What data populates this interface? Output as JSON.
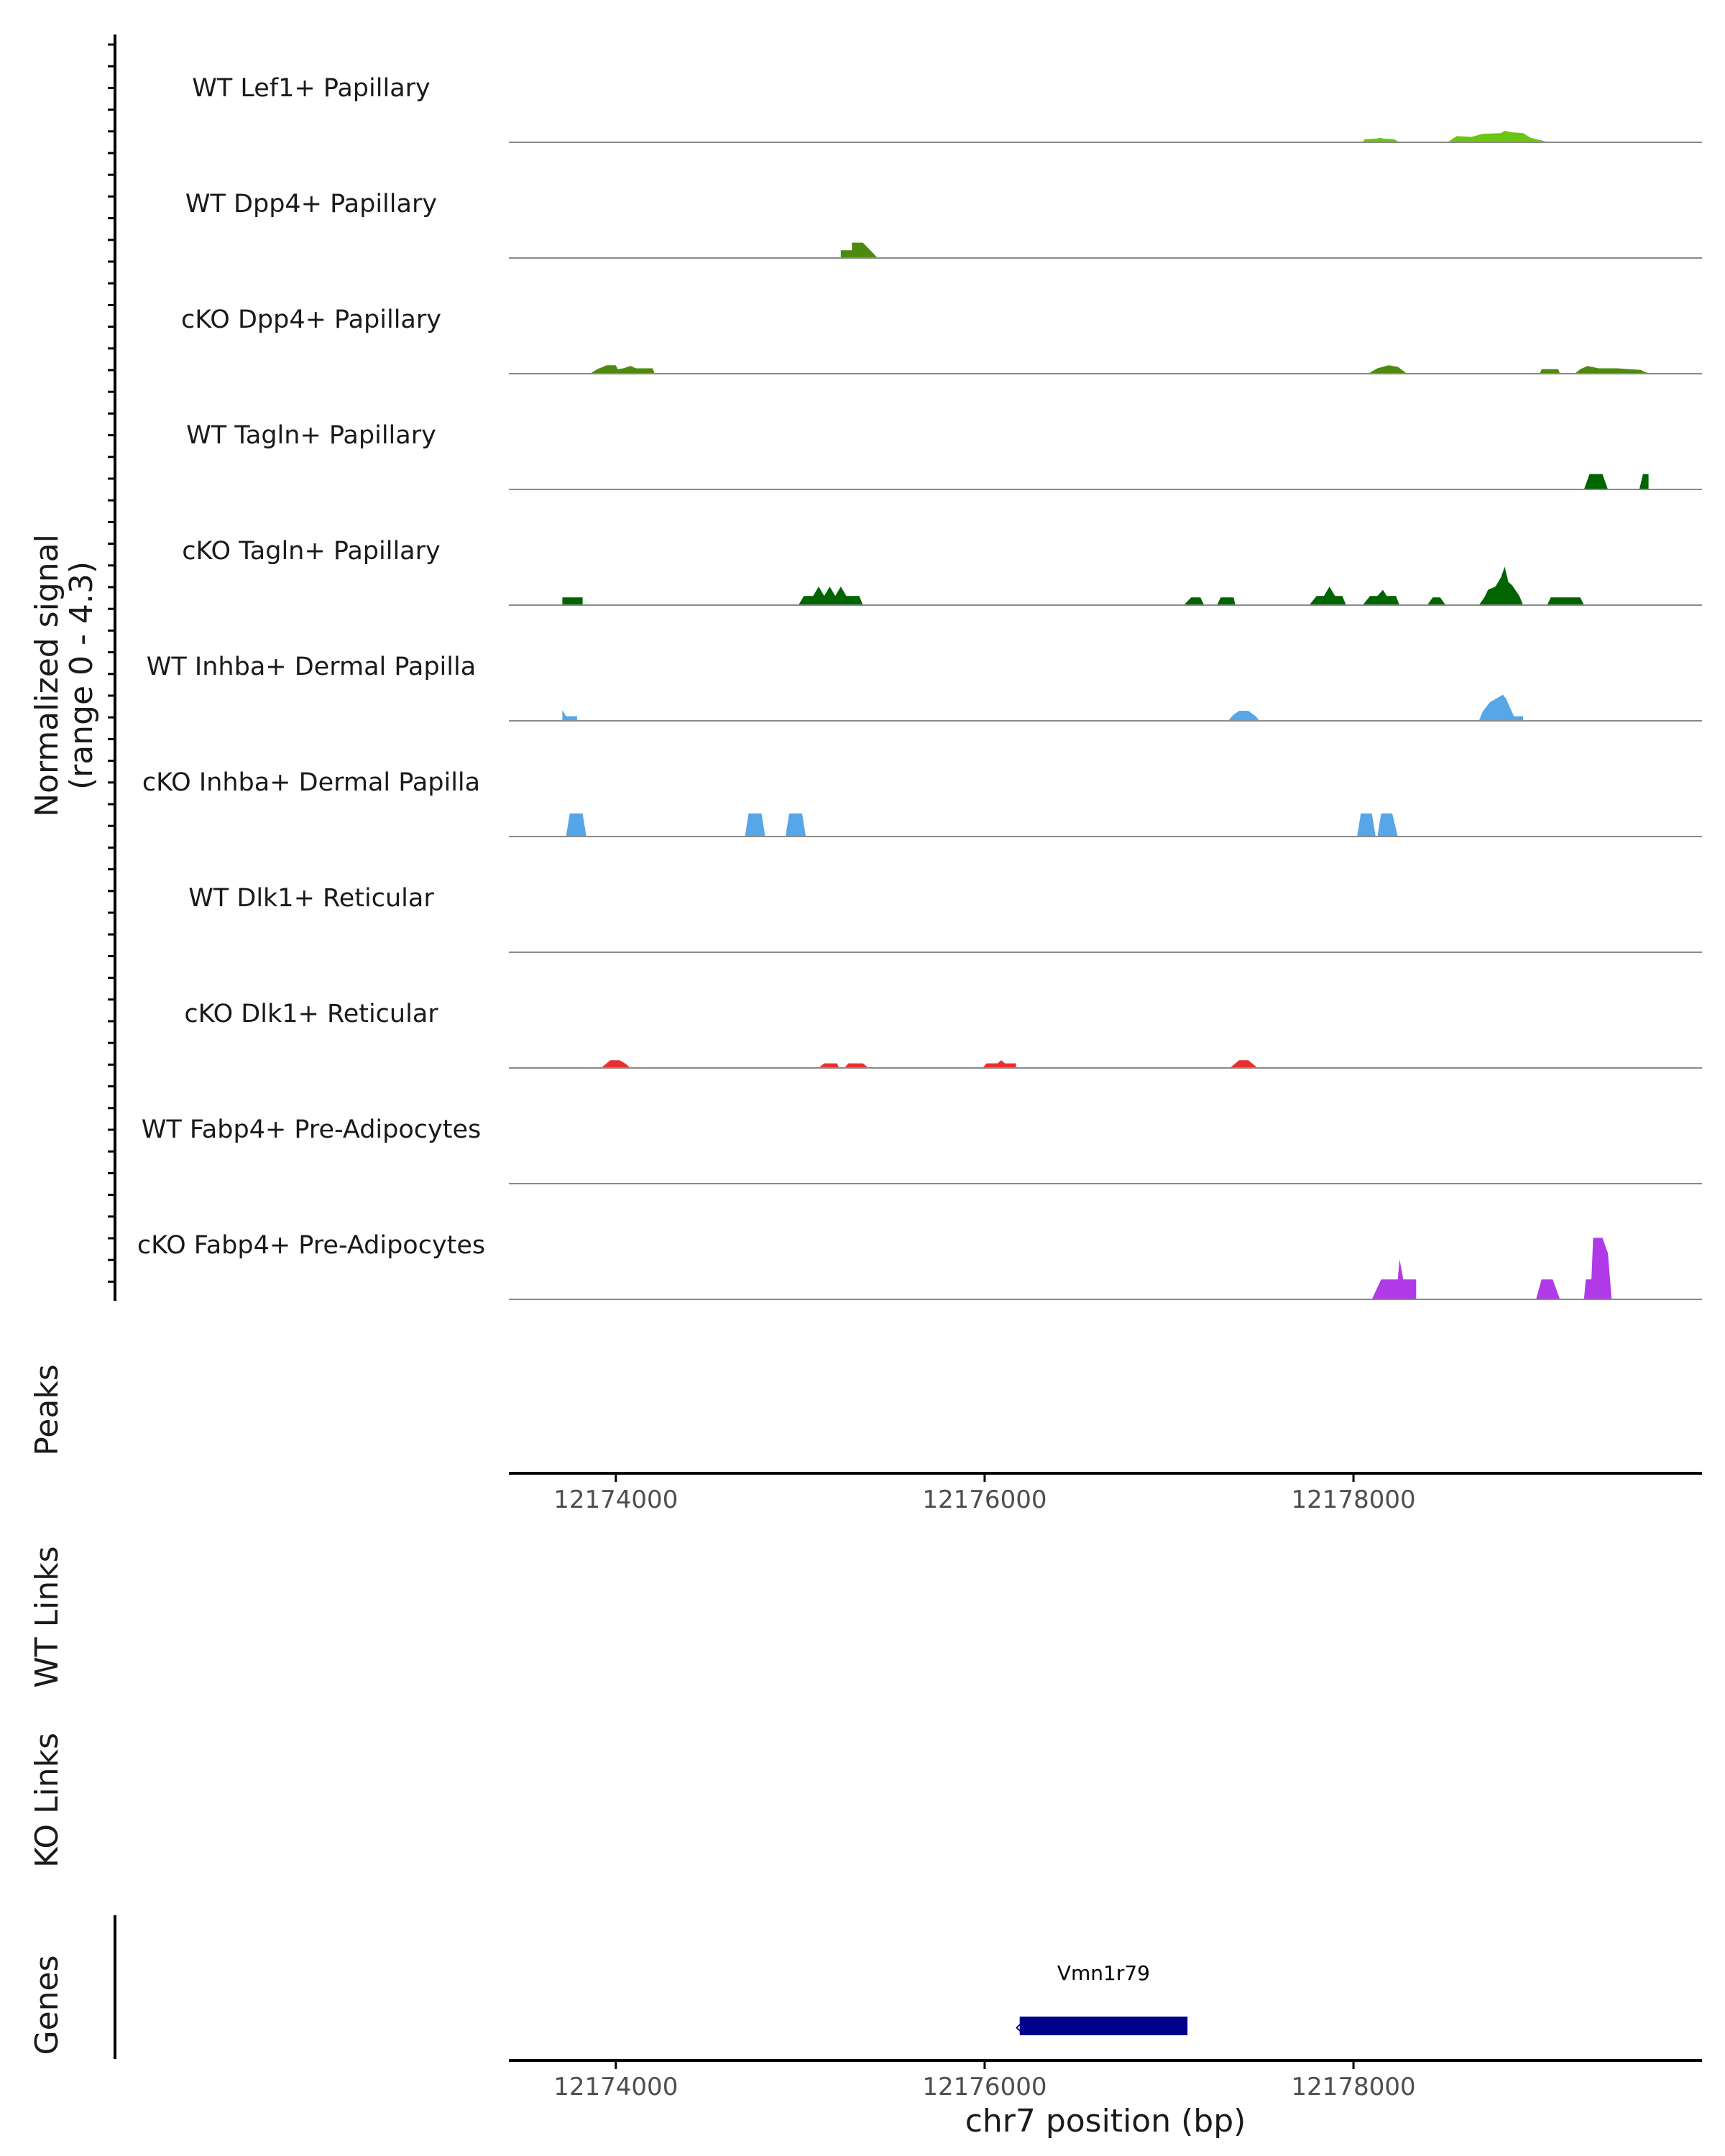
{
  "colors": {
    "axis": "#000000",
    "baseline": "#8a8a8a",
    "tick_text": "#4d4d4d",
    "label_text": "#1a1a1a",
    "gene": "#00008b"
  },
  "chart_data": {
    "type": "area",
    "title": "",
    "signal_ylabel": "Normalized signal",
    "signal_ylabel_range": "(range 0 - 4.3)",
    "signal_range": [
      0,
      4.3
    ],
    "xlabel": "chr7 position (bp)",
    "xlim": [
      12173420,
      12179890
    ],
    "xticks": [
      "12174000",
      "12176000",
      "12178000"
    ],
    "xtick_values": [
      12174000,
      12176000,
      12178000
    ],
    "tracks": [
      {
        "name": "WT Lef1+ Papillary",
        "color": "#6cc414",
        "points": [
          [
            12178050,
            0
          ],
          [
            12178060,
            0.2
          ],
          [
            12178130,
            0.25
          ],
          [
            12178140,
            0.3
          ],
          [
            12178160,
            0.25
          ],
          [
            12178220,
            0.2
          ],
          [
            12178250,
            0
          ],
          [
            12178510,
            0
          ],
          [
            12178560,
            0.4
          ],
          [
            12178640,
            0.35
          ],
          [
            12178700,
            0.55
          ],
          [
            12178800,
            0.6
          ],
          [
            12178820,
            0.75
          ],
          [
            12178860,
            0.65
          ],
          [
            12178920,
            0.6
          ],
          [
            12178960,
            0.3
          ],
          [
            12179060,
            0
          ]
        ]
      },
      {
        "name": "WT Dpp4+ Papillary",
        "color": "#4f8a10",
        "points": [
          [
            12175220,
            0
          ],
          [
            12175220,
            0.5
          ],
          [
            12175280,
            0.5
          ],
          [
            12175280,
            1.0
          ],
          [
            12175340,
            1.0
          ],
          [
            12175380,
            0.5
          ],
          [
            12175420,
            0
          ]
        ]
      },
      {
        "name": "cKO Dpp4+ Papillary",
        "color": "#4f8a10",
        "points": [
          [
            12173860,
            0
          ],
          [
            12173900,
            0.3
          ],
          [
            12173950,
            0.55
          ],
          [
            12174000,
            0.55
          ],
          [
            12174010,
            0.3
          ],
          [
            12174040,
            0.35
          ],
          [
            12174080,
            0.5
          ],
          [
            12174110,
            0.35
          ],
          [
            12174200,
            0.35
          ],
          [
            12174210,
            0
          ],
          [
            12178080,
            0
          ],
          [
            12178130,
            0.35
          ],
          [
            12178190,
            0.55
          ],
          [
            12178240,
            0.45
          ],
          [
            12178290,
            0
          ],
          [
            12179010,
            0
          ],
          [
            12179020,
            0.3
          ],
          [
            12179110,
            0.3
          ],
          [
            12179120,
            0
          ],
          [
            12179200,
            0
          ],
          [
            12179230,
            0.3
          ],
          [
            12179270,
            0.5
          ],
          [
            12179330,
            0.35
          ],
          [
            12179430,
            0.35
          ],
          [
            12179560,
            0.25
          ],
          [
            12179580,
            0.1
          ],
          [
            12179620,
            0
          ]
        ]
      },
      {
        "name": "WT Tagln+ Papillary",
        "color": "#006400",
        "points": [
          [
            12179250,
            0
          ],
          [
            12179280,
            1.0
          ],
          [
            12179350,
            1.0
          ],
          [
            12179380,
            0
          ],
          [
            12179550,
            0
          ],
          [
            12179570,
            1.0
          ],
          [
            12179600,
            1.0
          ],
          [
            12179600,
            0
          ]
        ]
      },
      {
        "name": "cKO Tagln+ Papillary",
        "color": "#006400",
        "points": [
          [
            12173710,
            0
          ],
          [
            12173710,
            0.5
          ],
          [
            12173820,
            0.5
          ],
          [
            12173820,
            0
          ],
          [
            12174990,
            0
          ],
          [
            12175020,
            0.6
          ],
          [
            12175070,
            0.6
          ],
          [
            12175100,
            1.2
          ],
          [
            12175130,
            0.6
          ],
          [
            12175160,
            1.2
          ],
          [
            12175190,
            0.6
          ],
          [
            12175220,
            1.2
          ],
          [
            12175250,
            0.6
          ],
          [
            12175320,
            0.6
          ],
          [
            12175340,
            0
          ],
          [
            12177080,
            0
          ],
          [
            12177120,
            0.5
          ],
          [
            12177170,
            0.5
          ],
          [
            12177190,
            0
          ],
          [
            12177260,
            0
          ],
          [
            12177280,
            0.5
          ],
          [
            12177350,
            0.5
          ],
          [
            12177360,
            0
          ],
          [
            12177760,
            0
          ],
          [
            12177800,
            0.6
          ],
          [
            12177840,
            0.6
          ],
          [
            12177870,
            1.2
          ],
          [
            12177900,
            0.6
          ],
          [
            12177940,
            0.6
          ],
          [
            12177960,
            0
          ],
          [
            12178050,
            0
          ],
          [
            12178090,
            0.6
          ],
          [
            12178130,
            0.6
          ],
          [
            12178160,
            1.0
          ],
          [
            12178180,
            0.6
          ],
          [
            12178230,
            0.6
          ],
          [
            12178250,
            0
          ],
          [
            12178400,
            0
          ],
          [
            12178430,
            0.5
          ],
          [
            12178470,
            0.5
          ],
          [
            12178500,
            0
          ],
          [
            12178680,
            0
          ],
          [
            12178710,
            0.5
          ],
          [
            12178730,
            1.0
          ],
          [
            12178770,
            1.2
          ],
          [
            12178800,
            1.8
          ],
          [
            12178820,
            2.5
          ],
          [
            12178840,
            1.5
          ],
          [
            12178860,
            1.3
          ],
          [
            12178900,
            0.6
          ],
          [
            12178920,
            0
          ],
          [
            12179050,
            0
          ],
          [
            12179070,
            0.5
          ],
          [
            12179230,
            0.5
          ],
          [
            12179250,
            0
          ]
        ]
      },
      {
        "name": "WT Inhba+ Dermal Papilla",
        "color": "#56a6e8",
        "points": [
          [
            12173710,
            0
          ],
          [
            12173710,
            0.7
          ],
          [
            12173730,
            0.3
          ],
          [
            12173790,
            0.3
          ],
          [
            12173790,
            0
          ],
          [
            12177320,
            0
          ],
          [
            12177350,
            0.4
          ],
          [
            12177380,
            0.65
          ],
          [
            12177430,
            0.65
          ],
          [
            12177470,
            0.3
          ],
          [
            12177490,
            0
          ],
          [
            12178680,
            0
          ],
          [
            12178700,
            0.6
          ],
          [
            12178740,
            1.2
          ],
          [
            12178810,
            1.7
          ],
          [
            12178830,
            1.4
          ],
          [
            12178840,
            1.1
          ],
          [
            12178870,
            0.3
          ],
          [
            12178920,
            0.3
          ],
          [
            12178920,
            0
          ]
        ]
      },
      {
        "name": "cKO Inhba+ Dermal Papilla",
        "color": "#56a6e8",
        "points": [
          [
            12173730,
            0
          ],
          [
            12173750,
            1.5
          ],
          [
            12173820,
            1.5
          ],
          [
            12173840,
            0
          ],
          [
            12174700,
            0
          ],
          [
            12174720,
            1.5
          ],
          [
            12174790,
            1.5
          ],
          [
            12174810,
            0
          ],
          [
            12174920,
            0
          ],
          [
            12174940,
            1.5
          ],
          [
            12175010,
            1.5
          ],
          [
            12175030,
            0
          ],
          [
            12178020,
            0
          ],
          [
            12178040,
            1.5
          ],
          [
            12178100,
            1.5
          ],
          [
            12178120,
            0
          ],
          [
            12178130,
            0
          ],
          [
            12178150,
            1.5
          ],
          [
            12178210,
            1.5
          ],
          [
            12178240,
            0
          ]
        ]
      },
      {
        "name": "WT Dlk1+ Reticular",
        "color": "#e41a1c",
        "points": []
      },
      {
        "name": "cKO Dlk1+ Reticular",
        "color": "#e83030",
        "points": [
          [
            12173920,
            0
          ],
          [
            12173950,
            0.3
          ],
          [
            12173970,
            0.5
          ],
          [
            12174020,
            0.5
          ],
          [
            12174050,
            0.3
          ],
          [
            12174080,
            0
          ],
          [
            12175100,
            0
          ],
          [
            12175130,
            0.3
          ],
          [
            12175200,
            0.3
          ],
          [
            12175210,
            0
          ],
          [
            12175240,
            0
          ],
          [
            12175260,
            0.3
          ],
          [
            12175340,
            0.3
          ],
          [
            12175370,
            0
          ],
          [
            12175990,
            0
          ],
          [
            12176010,
            0.3
          ],
          [
            12176070,
            0.3
          ],
          [
            12176090,
            0.5
          ],
          [
            12176110,
            0.3
          ],
          [
            12176170,
            0.3
          ],
          [
            12176170,
            0
          ],
          [
            12177330,
            0
          ],
          [
            12177360,
            0.3
          ],
          [
            12177380,
            0.5
          ],
          [
            12177430,
            0.5
          ],
          [
            12177450,
            0.3
          ],
          [
            12177480,
            0
          ]
        ]
      },
      {
        "name": "WT Fabp4+ Pre-Adipocytes",
        "color": "#a63fe8",
        "points": []
      },
      {
        "name": "cKO Fabp4+ Pre-Adipocytes",
        "color": "#b03ae8",
        "points": [
          [
            12178100,
            0
          ],
          [
            12178150,
            1.3
          ],
          [
            12178240,
            1.3
          ],
          [
            12178250,
            2.6
          ],
          [
            12178270,
            1.3
          ],
          [
            12178340,
            1.3
          ],
          [
            12178340,
            0
          ],
          [
            12178990,
            0
          ],
          [
            12179020,
            1.3
          ],
          [
            12179080,
            1.3
          ],
          [
            12179120,
            0
          ],
          [
            12179250,
            0
          ],
          [
            12179260,
            1.3
          ],
          [
            12179290,
            1.3
          ],
          [
            12179300,
            4.0
          ],
          [
            12179350,
            4.0
          ],
          [
            12179380,
            3.0
          ],
          [
            12179400,
            0
          ]
        ]
      }
    ],
    "panels": [
      {
        "label": "Peaks"
      },
      {
        "label": "WT Links"
      },
      {
        "label": "KO Links"
      },
      {
        "label": "Genes"
      }
    ],
    "gene": {
      "name": "Vmn1r79",
      "start": 12176190,
      "end": 12177100,
      "strand": "-"
    }
  }
}
